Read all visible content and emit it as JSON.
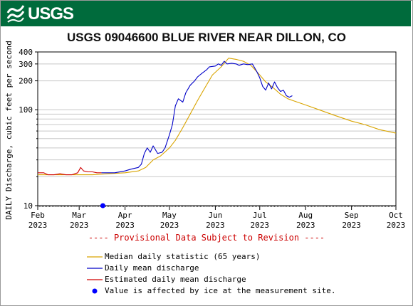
{
  "agency": "USGS",
  "title": "USGS 09046600 BLUE RIVER NEAR DILLON, CO",
  "provisional_note": "---- Provisional Data Subject to Revision ----",
  "colors": {
    "banner": "#006b3c",
    "median": "#d9a400",
    "daily_mean": "#0000c8",
    "estimated": "#d00000",
    "ice": "#0000ff",
    "provisional": "#cc0000"
  },
  "legend": [
    {
      "label": "Median daily statistic (65 years)",
      "kind": "line",
      "color": "#d9a400"
    },
    {
      "label": "Daily mean discharge",
      "kind": "line",
      "color": "#0000c8"
    },
    {
      "label": "Estimated daily mean discharge",
      "kind": "line",
      "color": "#d00000"
    },
    {
      "label": "Value is affected by ice at the measurement site.",
      "kind": "dot",
      "color": "#0000ff"
    }
  ],
  "chart_data": {
    "type": "line",
    "title": "USGS 09046600 BLUE RIVER NEAR DILLON, CO",
    "ylabel": "DAILY Discharge, cubic feet per second",
    "xlabel": "",
    "yscale": "log",
    "ylim": [
      10,
      400
    ],
    "yticks": [
      10,
      100,
      200,
      300,
      400
    ],
    "xlim": [
      "2023-02-01",
      "2023-10-01"
    ],
    "xticks": [
      {
        "date": "2023-02-01",
        "label": [
          "Feb",
          "2023"
        ]
      },
      {
        "date": "2023-03-01",
        "label": [
          "Mar",
          "2023"
        ]
      },
      {
        "date": "2023-04-01",
        "label": [
          "Apr",
          "2023"
        ]
      },
      {
        "date": "2023-05-01",
        "label": [
          "May",
          "2023"
        ]
      },
      {
        "date": "2023-06-01",
        "label": [
          "Jun",
          "2023"
        ]
      },
      {
        "date": "2023-07-01",
        "label": [
          "Jul",
          "2023"
        ]
      },
      {
        "date": "2023-08-01",
        "label": [
          "Aug",
          "2023"
        ]
      },
      {
        "date": "2023-09-01",
        "label": [
          "Sep",
          "2023"
        ]
      },
      {
        "date": "2023-10-01",
        "label": [
          "Oct",
          "2023"
        ]
      }
    ],
    "grid": true,
    "series": [
      {
        "name": "Median daily statistic (65 years)",
        "color": "#d9a400",
        "points": [
          [
            "2023-02-01",
            21
          ],
          [
            "2023-02-10",
            21
          ],
          [
            "2023-02-20",
            21
          ],
          [
            "2023-03-01",
            21
          ],
          [
            "2023-03-10",
            21
          ],
          [
            "2023-03-20",
            21.5
          ],
          [
            "2023-04-01",
            22
          ],
          [
            "2023-04-10",
            23
          ],
          [
            "2023-04-15",
            25
          ],
          [
            "2023-04-20",
            30
          ],
          [
            "2023-04-25",
            33
          ],
          [
            "2023-05-01",
            40
          ],
          [
            "2023-05-05",
            48
          ],
          [
            "2023-05-10",
            65
          ],
          [
            "2023-05-15",
            90
          ],
          [
            "2023-05-20",
            125
          ],
          [
            "2023-05-25",
            170
          ],
          [
            "2023-05-30",
            230
          ],
          [
            "2023-06-05",
            280
          ],
          [
            "2023-06-10",
            345
          ],
          [
            "2023-06-15",
            335
          ],
          [
            "2023-06-20",
            320
          ],
          [
            "2023-06-25",
            290
          ],
          [
            "2023-07-01",
            230
          ],
          [
            "2023-07-05",
            195
          ],
          [
            "2023-07-10",
            170
          ],
          [
            "2023-07-15",
            145
          ],
          [
            "2023-07-20",
            130
          ],
          [
            "2023-07-25",
            122
          ],
          [
            "2023-08-01",
            112
          ],
          [
            "2023-08-10",
            100
          ],
          [
            "2023-08-20",
            88
          ],
          [
            "2023-09-01",
            76
          ],
          [
            "2023-09-10",
            70
          ],
          [
            "2023-09-20",
            62
          ],
          [
            "2023-10-01",
            57
          ]
        ]
      },
      {
        "name": "Daily mean discharge",
        "color": "#0000c8",
        "points": [
          [
            "2023-03-16",
            22
          ],
          [
            "2023-03-25",
            22
          ],
          [
            "2023-04-01",
            23
          ],
          [
            "2023-04-05",
            24
          ],
          [
            "2023-04-10",
            25
          ],
          [
            "2023-04-12",
            27
          ],
          [
            "2023-04-14",
            35
          ],
          [
            "2023-04-16",
            40
          ],
          [
            "2023-04-18",
            36
          ],
          [
            "2023-04-20",
            42
          ],
          [
            "2023-04-23",
            35
          ],
          [
            "2023-04-26",
            36
          ],
          [
            "2023-04-28",
            40
          ],
          [
            "2023-05-01",
            55
          ],
          [
            "2023-05-03",
            70
          ],
          [
            "2023-05-05",
            110
          ],
          [
            "2023-05-07",
            130
          ],
          [
            "2023-05-10",
            120
          ],
          [
            "2023-05-12",
            150
          ],
          [
            "2023-05-15",
            180
          ],
          [
            "2023-05-18",
            200
          ],
          [
            "2023-05-20",
            220
          ],
          [
            "2023-05-23",
            240
          ],
          [
            "2023-05-26",
            260
          ],
          [
            "2023-05-28",
            280
          ],
          [
            "2023-06-01",
            285
          ],
          [
            "2023-06-03",
            300
          ],
          [
            "2023-06-05",
            290
          ],
          [
            "2023-06-07",
            320
          ],
          [
            "2023-06-09",
            300
          ],
          [
            "2023-06-12",
            305
          ],
          [
            "2023-06-15",
            300
          ],
          [
            "2023-06-17",
            290
          ],
          [
            "2023-06-20",
            300
          ],
          [
            "2023-06-23",
            295
          ],
          [
            "2023-06-26",
            300
          ],
          [
            "2023-06-29",
            250
          ],
          [
            "2023-07-01",
            215
          ],
          [
            "2023-07-03",
            175
          ],
          [
            "2023-07-05",
            160
          ],
          [
            "2023-07-07",
            190
          ],
          [
            "2023-07-09",
            165
          ],
          [
            "2023-07-11",
            195
          ],
          [
            "2023-07-13",
            170
          ],
          [
            "2023-07-15",
            155
          ],
          [
            "2023-07-17",
            160
          ],
          [
            "2023-07-19",
            140
          ],
          [
            "2023-07-21",
            135
          ],
          [
            "2023-07-23",
            140
          ]
        ]
      },
      {
        "name": "Estimated daily mean discharge",
        "color": "#d00000",
        "points": [
          [
            "2023-02-01",
            22
          ],
          [
            "2023-02-05",
            22
          ],
          [
            "2023-02-08",
            21
          ],
          [
            "2023-02-12",
            21
          ],
          [
            "2023-02-16",
            21.5
          ],
          [
            "2023-02-20",
            21
          ],
          [
            "2023-02-24",
            21
          ],
          [
            "2023-02-28",
            22
          ],
          [
            "2023-03-02",
            25
          ],
          [
            "2023-03-04",
            23
          ],
          [
            "2023-03-07",
            22.5
          ],
          [
            "2023-03-10",
            22.5
          ],
          [
            "2023-03-13",
            22
          ],
          [
            "2023-03-16",
            22
          ]
        ]
      }
    ],
    "ice_points": [
      [
        "2023-03-17",
        10
      ]
    ]
  }
}
